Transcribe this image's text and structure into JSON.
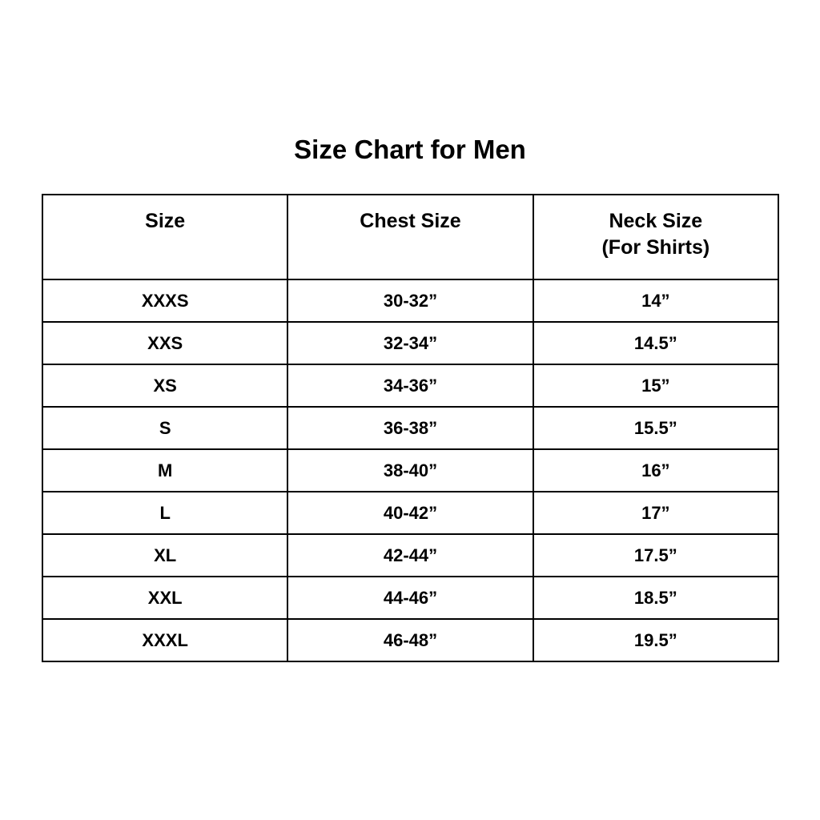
{
  "colors": {
    "background": "#ffffff",
    "border": "#000000",
    "text": "#000000"
  },
  "chart_data": {
    "type": "table",
    "title": "Size Chart for Men",
    "header": {
      "col1": "Size",
      "col2": "Chest Size",
      "col3_line1": "Neck Size",
      "col3_line2": "(For Shirts)"
    },
    "rows": [
      [
        "XXXS",
        "30-32”",
        "14”"
      ],
      [
        "XXS",
        "32-34”",
        "14.5”"
      ],
      [
        "XS",
        "34-36”",
        "15”"
      ],
      [
        "S",
        "36-38”",
        "15.5”"
      ],
      [
        "M",
        "38-40”",
        "16”"
      ],
      [
        "L",
        "40-42”",
        "17”"
      ],
      [
        "XL",
        "42-44”",
        "17.5”"
      ],
      [
        "XXL",
        "44-46”",
        "18.5”"
      ],
      [
        "XXXL",
        "46-48”",
        "19.5”"
      ]
    ]
  }
}
